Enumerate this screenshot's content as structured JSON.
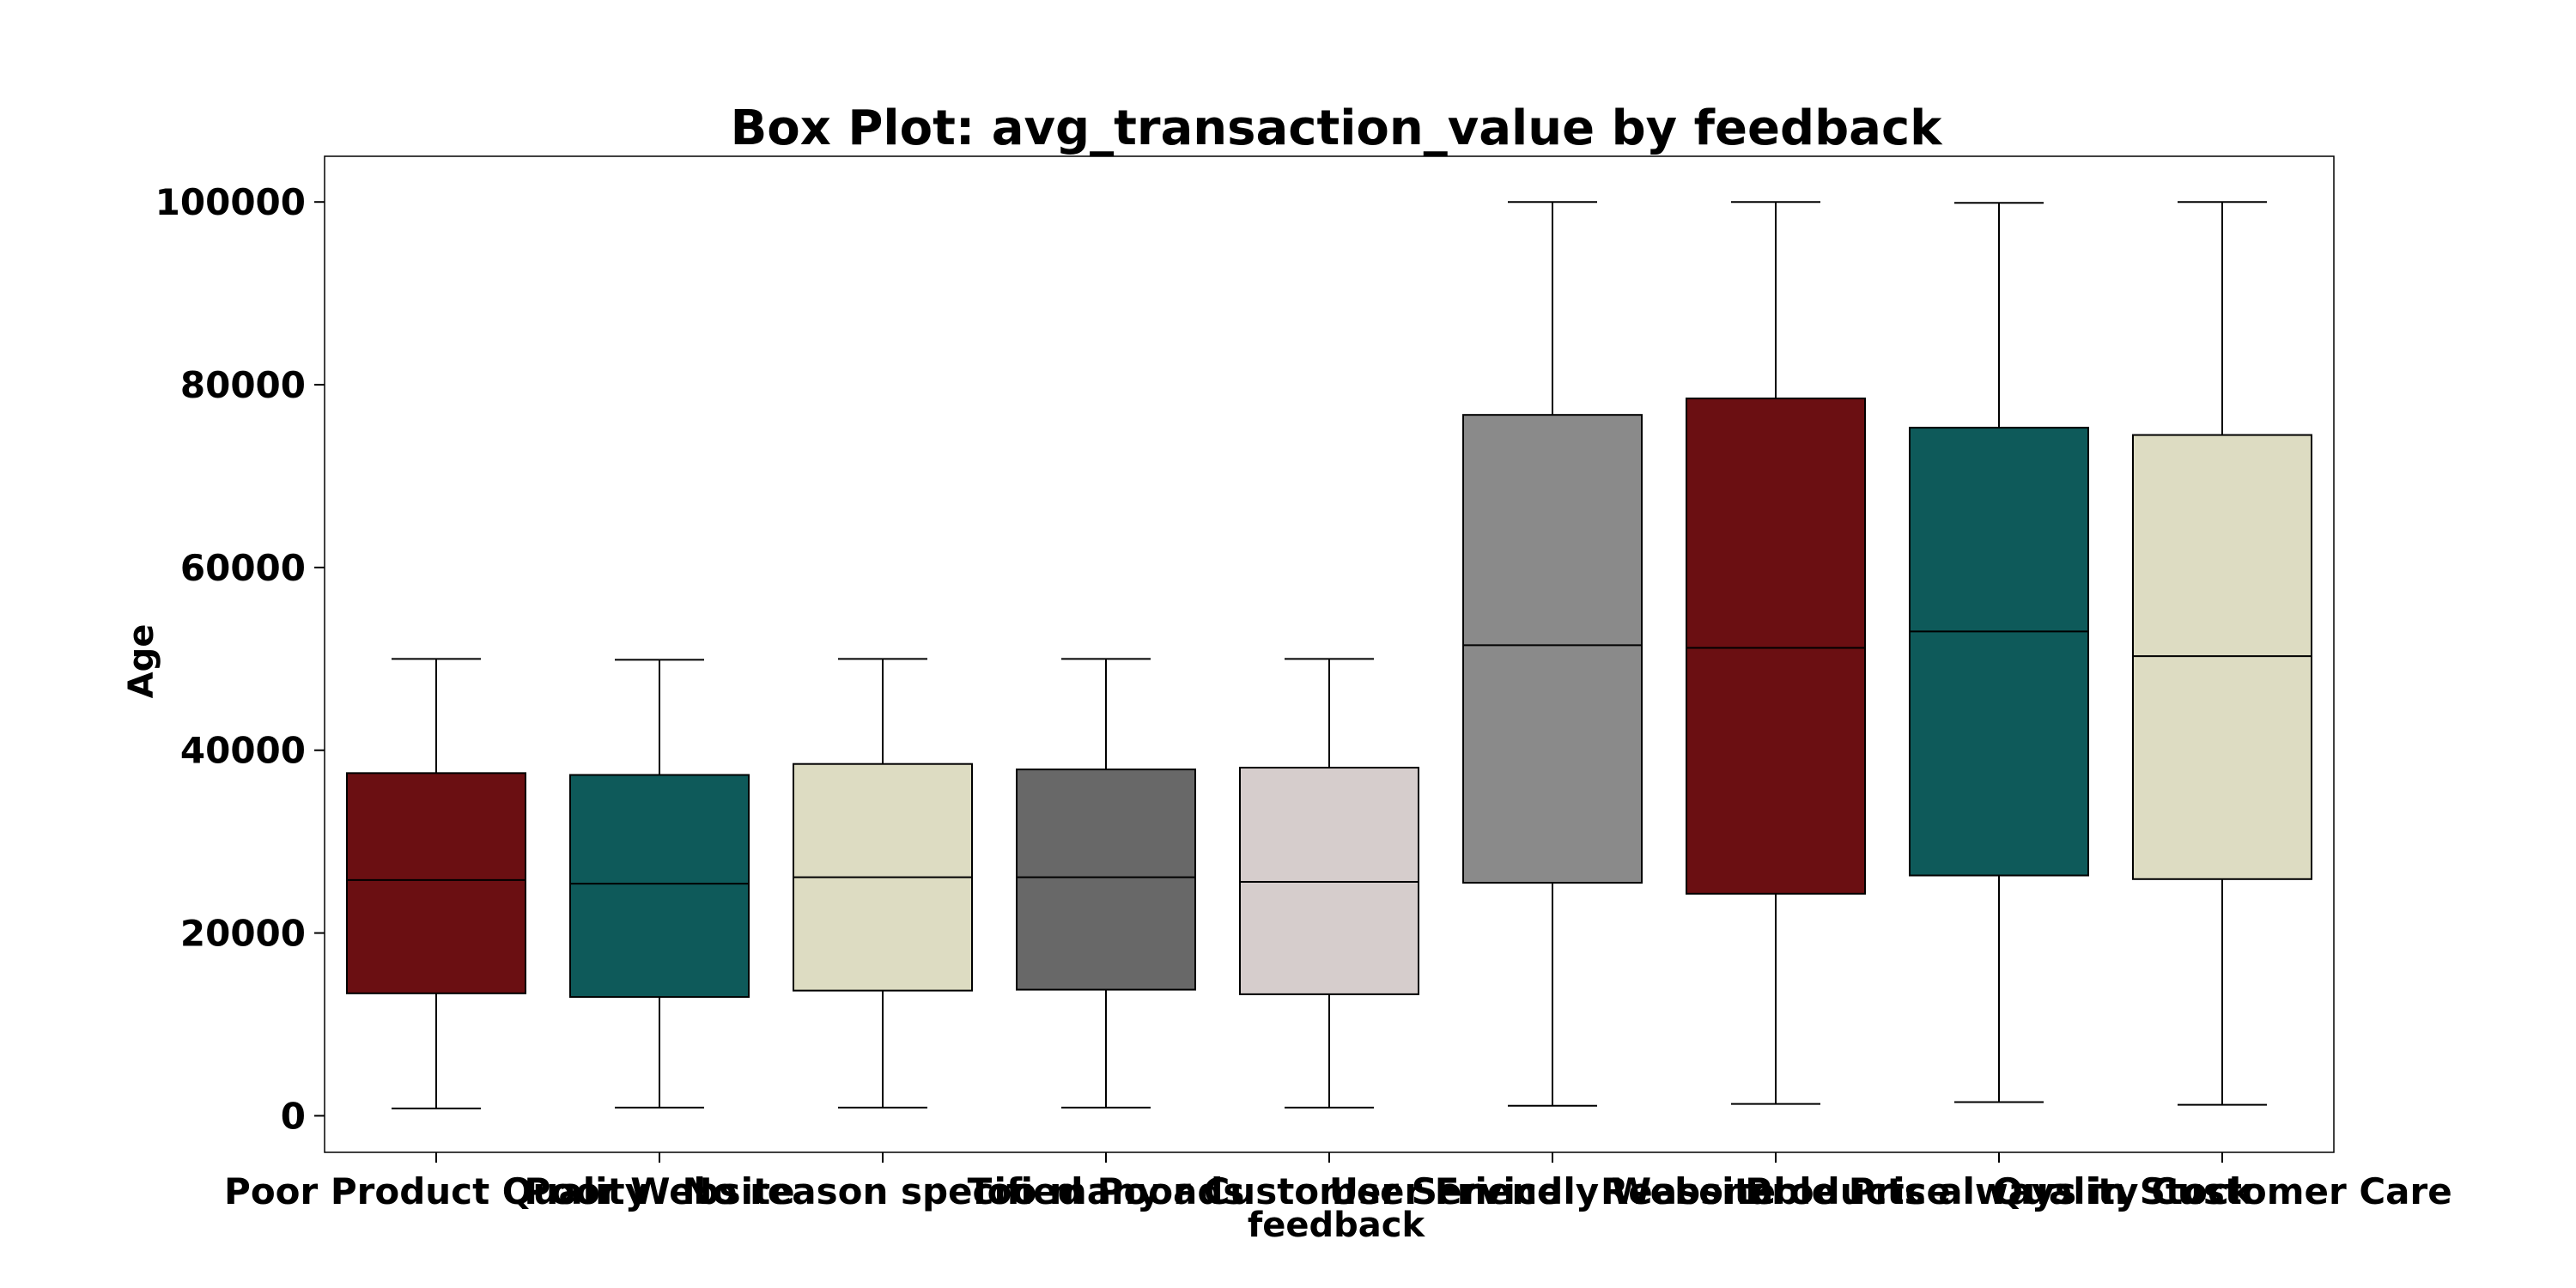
{
  "chart_data": {
    "type": "box",
    "title": "Box Plot: avg_transaction_value by feedback",
    "xlabel": "feedback",
    "ylabel": "Age",
    "ylim": [
      -4000,
      105000
    ],
    "yticks": [
      0,
      20000,
      40000,
      60000,
      80000,
      100000
    ],
    "grid": false,
    "categories": [
      "Poor Product Quality",
      "Poor Website",
      "No reason specified",
      "Too many ads",
      "Poor Customer Service",
      "User Friendly Website",
      "Reasonable Price",
      "Products always in Stock",
      "Quality Customer Care"
    ],
    "boxes": [
      {
        "whisker_low": 800,
        "q1": 13400,
        "median": 25800,
        "q3": 37500,
        "whisker_high": 50000,
        "color": "#6b0f12"
      },
      {
        "whisker_low": 900,
        "q1": 13000,
        "median": 25400,
        "q3": 37300,
        "whisker_high": 49900,
        "color": "#0e5a5a"
      },
      {
        "whisker_low": 900,
        "q1": 13700,
        "median": 26100,
        "q3": 38500,
        "whisker_high": 50000,
        "color": "#dddcc2"
      },
      {
        "whisker_low": 900,
        "q1": 13800,
        "median": 26100,
        "q3": 37900,
        "whisker_high": 50000,
        "color": "#686868"
      },
      {
        "whisker_low": 900,
        "q1": 13300,
        "median": 25600,
        "q3": 38100,
        "whisker_high": 50000,
        "color": "#d6cdcc"
      },
      {
        "whisker_low": 1100,
        "q1": 25500,
        "median": 51500,
        "q3": 76700,
        "whisker_high": 100000,
        "color": "#8a8a8a"
      },
      {
        "whisker_low": 1300,
        "q1": 24300,
        "median": 51200,
        "q3": 78500,
        "whisker_high": 100000,
        "color": "#6b0f12"
      },
      {
        "whisker_low": 1500,
        "q1": 26300,
        "median": 53000,
        "q3": 75300,
        "whisker_high": 99900,
        "color": "#0e5a5a"
      },
      {
        "whisker_low": 1200,
        "q1": 25900,
        "median": 50300,
        "q3": 74500,
        "whisker_high": 100000,
        "color": "#dddcc2"
      }
    ]
  }
}
